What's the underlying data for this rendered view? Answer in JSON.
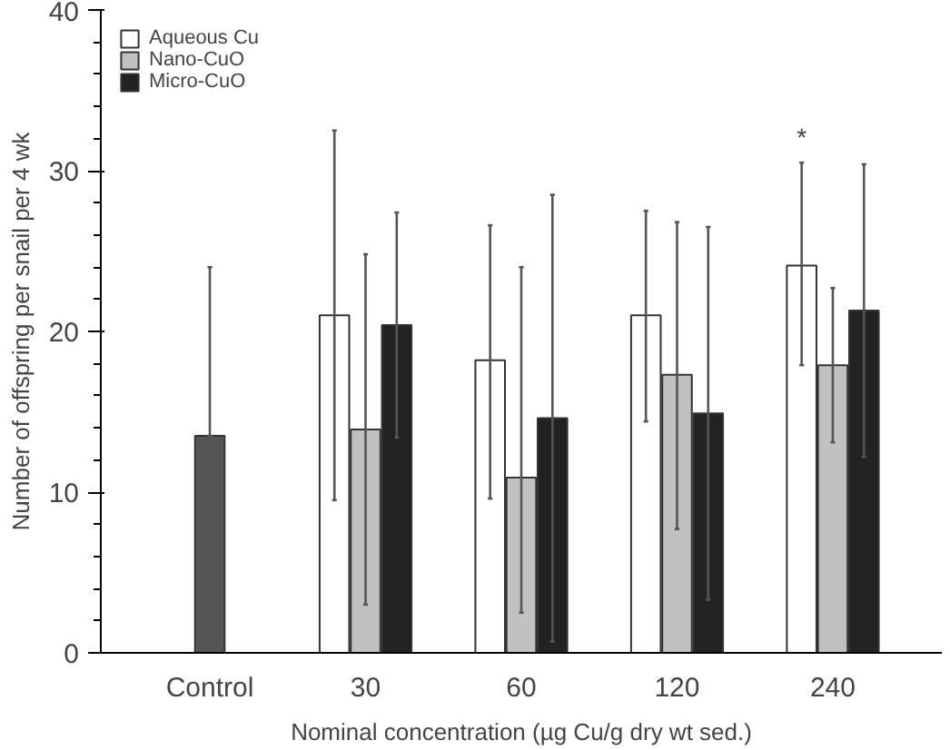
{
  "chart_data": {
    "type": "bar",
    "xlabel": "Nominal concentration (µg Cu/g dry wt sed.)",
    "ylabel": "Number of offspring per snail per 4 wk",
    "categories": [
      "Control",
      "30",
      "60",
      "120",
      "240"
    ],
    "ylim": [
      0,
      40
    ],
    "yticks": [
      0,
      10,
      20,
      30,
      40
    ],
    "grid": false,
    "legend": "top left",
    "series": [
      {
        "name": "Aqueous Cu",
        "color": "#ffffff",
        "values": [
          null,
          21.0,
          18.2,
          21.0,
          24.1
        ],
        "errors": [
          null,
          [
            9.5,
            32.5
          ],
          [
            9.6,
            26.6
          ],
          [
            14.4,
            27.5
          ],
          [
            17.9,
            30.5
          ]
        ]
      },
      {
        "name": "Nano-CuO",
        "color": "#c0c0c0",
        "values": [
          null,
          13.9,
          10.9,
          17.3,
          17.9
        ],
        "errors": [
          null,
          [
            3.0,
            24.8
          ],
          [
            2.5,
            24.0
          ],
          [
            7.7,
            26.8
          ],
          [
            13.1,
            22.7
          ]
        ]
      },
      {
        "name": "Micro-CuO",
        "color": "#222222",
        "values": [
          null,
          20.4,
          14.6,
          14.9,
          21.3
        ],
        "errors": [
          null,
          7.0,
          13.9,
          11.6,
          9.1
        ]
      },
      {
        "color": "#555555",
        "values": [
          13.5,
          null,
          null,
          null,
          null
        ],
        "errors": [
          [
            13.5,
            24.0
          ],
          null,
          null,
          null,
          null
        ]
      }
    ],
    "annotations": [
      "*"
    ]
  }
}
